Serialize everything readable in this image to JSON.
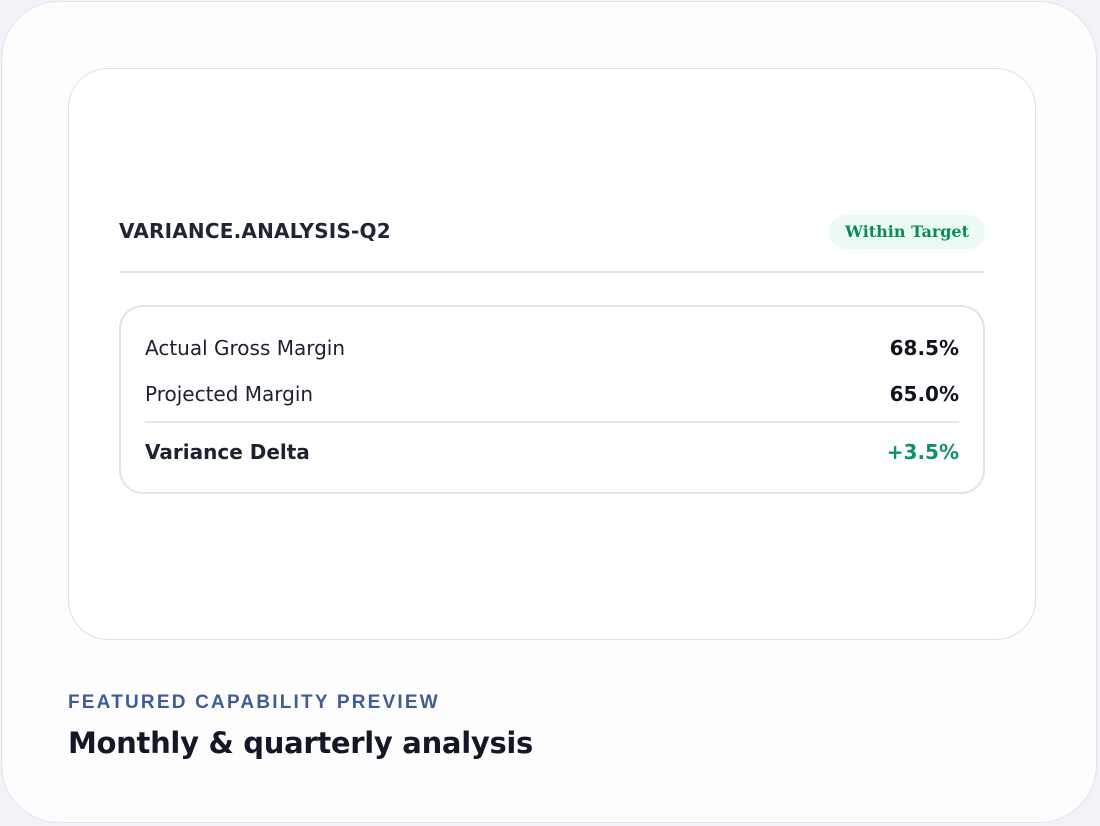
{
  "report": {
    "title": "VARIANCE.ANALYSIS-Q2",
    "status_badge": "Within Target",
    "status_color": "#0d8a5a",
    "metrics": [
      {
        "label": "Actual Gross Margin",
        "value": "68.5%"
      },
      {
        "label": "Projected Margin",
        "value": "65.0%"
      }
    ],
    "delta": {
      "label": "Variance Delta",
      "value": "+3.5%",
      "color": "#0d9461"
    }
  },
  "feature": {
    "eyebrow": "FEATURED CAPABILITY PREVIEW",
    "title": "Monthly & quarterly analysis"
  }
}
